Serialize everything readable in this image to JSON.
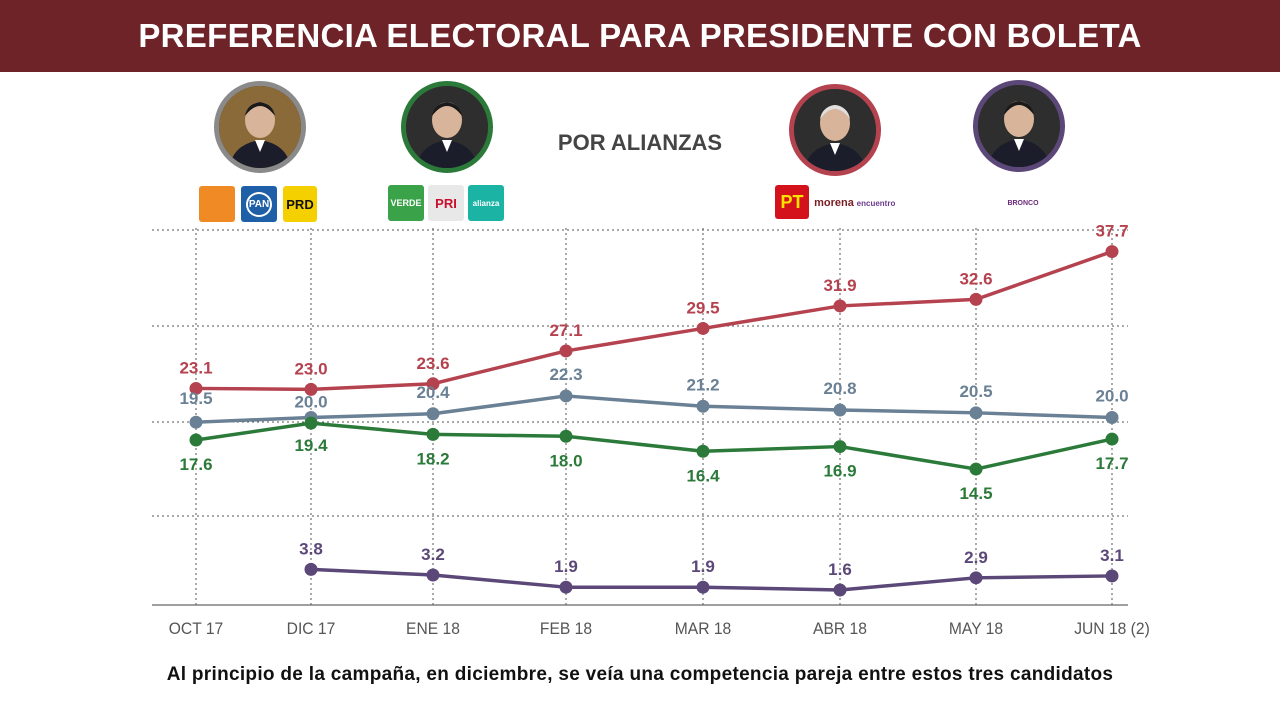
{
  "header": {
    "title": "PREFERENCIA ELECTORAL PARA PRESIDENTE CON BOLETA"
  },
  "subtitle": "POR ALIANZAS",
  "footer": "Al principio de la campaña, en diciembre, se veía una competencia pareja entre estos tres candidatos",
  "colors": {
    "header_bg": "#6e2328",
    "red": "#b5424f",
    "gray": "#6a8095",
    "green": "#2b7a3a",
    "purple": "#5b4878"
  },
  "candidates": [
    {
      "ring": "#8a8a8a",
      "logos": [
        {
          "text": "",
          "bg": "#f08a24",
          "fg": "#ffffff",
          "icon": "mc-bird-icon"
        },
        {
          "text": "PAN",
          "bg": "#1f5fa8",
          "fg": "#ffffff",
          "icon": "pan-logo"
        },
        {
          "text": "PRD",
          "bg": "#f5d000",
          "fg": "#111111",
          "icon": "prd-sun-logo"
        }
      ]
    },
    {
      "ring": "#2b7a3a",
      "logos": [
        {
          "text": "VERDE",
          "bg": "#3aa34a",
          "fg": "#ffffff",
          "icon": "verde-logo"
        },
        {
          "text": "PRI",
          "bg": "#e8e8e8",
          "fg": "#c8102e",
          "icon": "pri-logo"
        },
        {
          "text": "alianza",
          "bg": "#1bb3a3",
          "fg": "#ffffff",
          "icon": "nueva-alianza-logo"
        }
      ]
    },
    {
      "ring": "#b5424f",
      "logos": [
        {
          "text": "PT",
          "bg": "#d4121b",
          "fg": "#ffe300",
          "icon": "pt-logo"
        },
        {
          "text": "morena",
          "bg": "#ffffff",
          "fg": "#7a1c24",
          "icon": "morena-logo"
        },
        {
          "text": "encuentro",
          "bg": "#ffffff",
          "fg": "#6b3b8c",
          "icon": "encuentro-social-logo"
        }
      ]
    },
    {
      "ring": "#5b4878",
      "logos": [
        {
          "text": "BRONCO",
          "bg": "#ffffff",
          "fg": "#6b2a7a",
          "icon": "bronco-logo"
        }
      ]
    }
  ],
  "chart_data": {
    "type": "line",
    "title": "PREFERENCIA ELECTORAL PARA PRESIDENTE CON BOLETA",
    "subtitle": "POR ALIANZAS",
    "categories": [
      "OCT 17",
      "DIC 17",
      "ENE 18",
      "FEB 18",
      "MAR 18",
      "ABR 18",
      "MAY 18",
      "JUN 18 (2)"
    ],
    "grid": "dotted horizontal and vertical",
    "ylim": [
      0,
      40
    ],
    "series": [
      {
        "color": "#b5424f",
        "values": [
          23.1,
          23.0,
          23.6,
          27.1,
          29.5,
          31.9,
          32.6,
          37.7
        ],
        "labels": [
          "23.1",
          "23.0",
          "23.6",
          "27.1",
          "29.5",
          "31.9",
          "32.6",
          "37.7"
        ]
      },
      {
        "color": "#6a8095",
        "values": [
          19.5,
          20.0,
          20.4,
          22.3,
          21.2,
          20.8,
          20.5,
          20.0
        ],
        "labels": [
          "19.5",
          "20.0",
          "20.4",
          "22.3",
          "21.2",
          "20.8",
          "20.5",
          "20.0"
        ]
      },
      {
        "color": "#2b7a3a",
        "values": [
          17.6,
          19.4,
          18.2,
          18.0,
          16.4,
          16.9,
          14.5,
          17.7
        ],
        "labels": [
          "17.6",
          "19.4",
          "18.2",
          "18.0",
          "16.4",
          "16.9",
          "14.5",
          "17.7"
        ]
      },
      {
        "color": "#5b4878",
        "values": [
          null,
          3.8,
          3.2,
          1.9,
          1.9,
          1.6,
          2.9,
          3.1
        ],
        "labels": [
          "",
          "3.8",
          "3.2",
          "1.9",
          "1.9",
          "1.6",
          "2.9",
          "3.1"
        ]
      }
    ]
  }
}
